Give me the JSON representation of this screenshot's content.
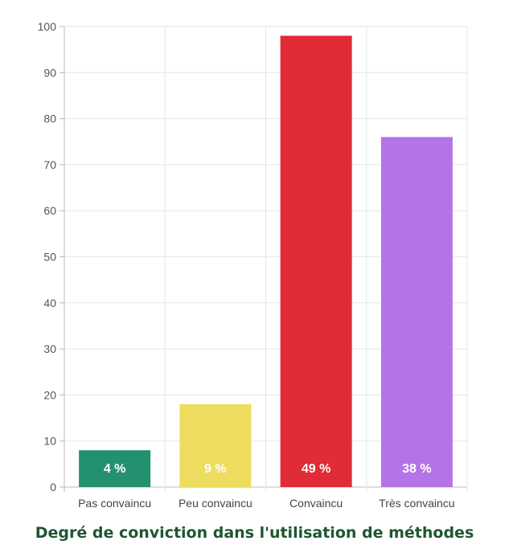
{
  "chart_data": {
    "type": "bar",
    "title": "Degré de conviction dans l'utilisation de méthodes",
    "categories": [
      "Pas convaincu",
      "Peu convaincu",
      "Convaincu",
      "Très convaincu"
    ],
    "values": [
      8,
      18,
      98,
      76
    ],
    "data_labels": [
      "4 %",
      "9 %",
      "49 %",
      "38 %"
    ],
    "colors": [
      "#23916f",
      "#eddc5e",
      "#e12b36",
      "#b474e7"
    ],
    "ylim": [
      0,
      100
    ],
    "yticks": [
      0,
      10,
      20,
      30,
      40,
      50,
      60,
      70,
      80,
      90,
      100
    ],
    "grid": true,
    "legend": "none",
    "xlabel": "",
    "ylabel": ""
  }
}
